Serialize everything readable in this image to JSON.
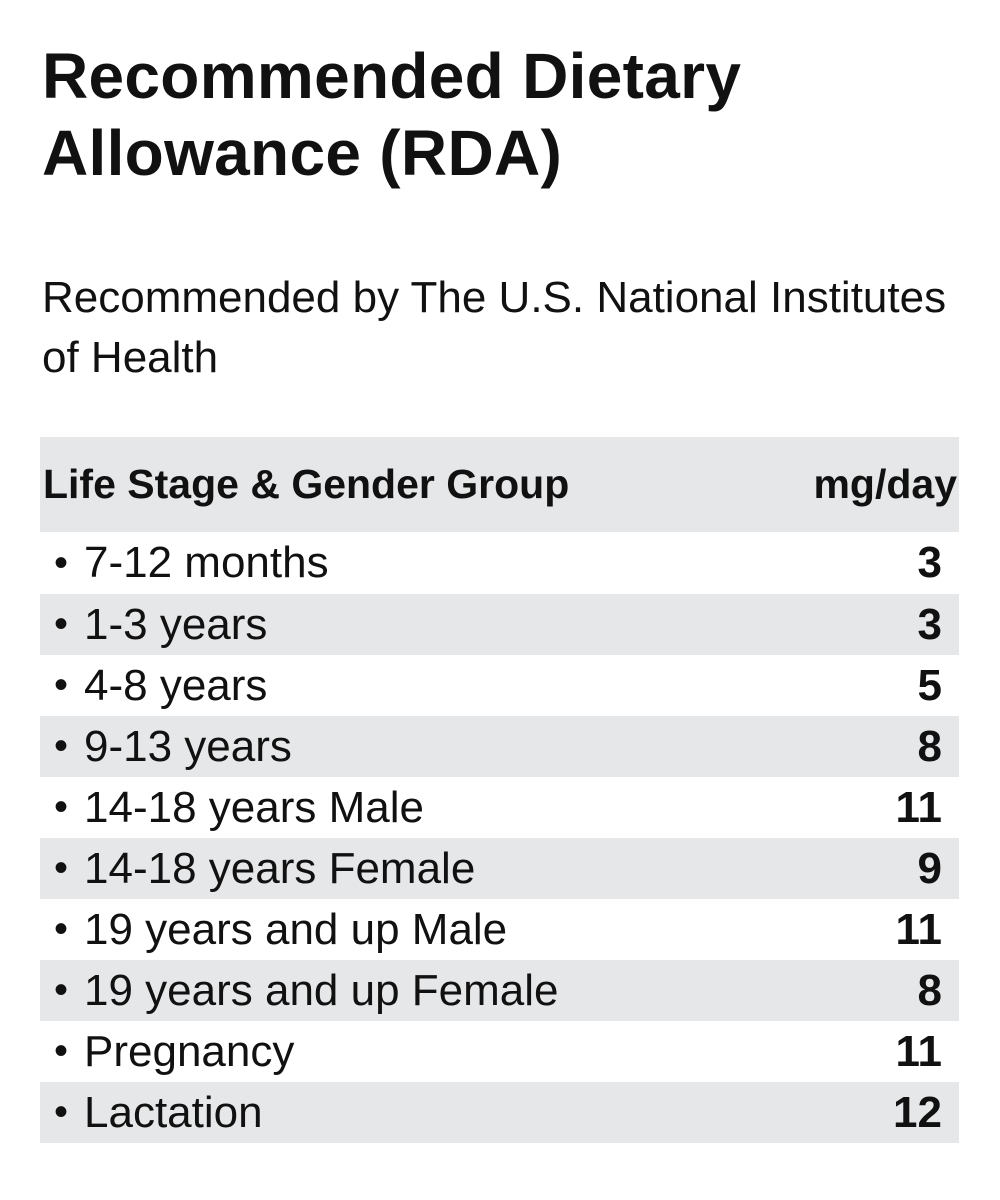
{
  "title": "Recommended Dietary Allowance (RDA)",
  "subtitle": "Recommended by The U.S. National Institutes of Health",
  "table": {
    "header": {
      "group": "Life Stage & Gender Group",
      "unit": "mg/day"
    },
    "bullet": "•",
    "rows": [
      {
        "group": "7-12 months",
        "value": "3"
      },
      {
        "group": "1-3 years",
        "value": "3"
      },
      {
        "group": "4-8 years",
        "value": "5"
      },
      {
        "group": "9-13 years",
        "value": "8"
      },
      {
        "group": "14-18 years Male",
        "value": "11"
      },
      {
        "group": "14-18 years Female",
        "value": "9"
      },
      {
        "group": "19 years and up Male",
        "value": "11"
      },
      {
        "group": "19 years and up Female",
        "value": "8"
      },
      {
        "group": "Pregnancy",
        "value": "11"
      },
      {
        "group": "Lactation",
        "value": "12"
      }
    ]
  },
  "colors": {
    "row_shade": "#e6e7e8",
    "text": "#111111",
    "background": "#ffffff"
  }
}
